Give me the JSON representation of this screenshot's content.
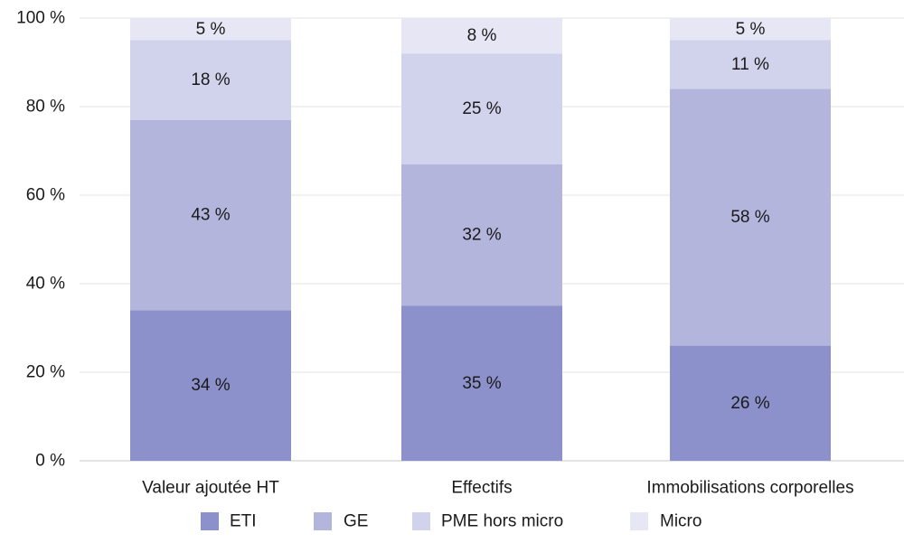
{
  "chart_data": {
    "type": "bar",
    "stacked": true,
    "categories": [
      "Valeur ajoutée HT",
      "Effectifs",
      "Immobilisations corporelles"
    ],
    "series": [
      {
        "name": "ETI",
        "values": [
          34,
          35,
          26
        ],
        "labels": [
          "34 %",
          "35 %",
          "26 %"
        ],
        "color": "#8c91cb"
      },
      {
        "name": "GE",
        "values": [
          43,
          32,
          58
        ],
        "labels": [
          "43 %",
          "32 %",
          "58 %"
        ],
        "color": "#b3b5dd"
      },
      {
        "name": "PME hors micro",
        "values": [
          18,
          25,
          11
        ],
        "labels": [
          "18 %",
          "25 %",
          "11 %"
        ],
        "color": "#d1d2eb"
      },
      {
        "name": "Micro",
        "values": [
          5,
          8,
          5
        ],
        "labels": [
          "5 %",
          "8 %",
          "5 %"
        ],
        "color": "#e6e6f4"
      }
    ],
    "y_ticks": [
      {
        "value": 0,
        "label": "0 %"
      },
      {
        "value": 20,
        "label": "20 %"
      },
      {
        "value": 40,
        "label": "40 %"
      },
      {
        "value": 60,
        "label": "60 %"
      },
      {
        "value": 80,
        "label": "80 %"
      },
      {
        "value": 100,
        "label": "100 %"
      }
    ],
    "ylim": [
      0,
      100
    ],
    "grid": true,
    "legend_position": "bottom",
    "title": "",
    "xlabel": "",
    "ylabel": ""
  }
}
